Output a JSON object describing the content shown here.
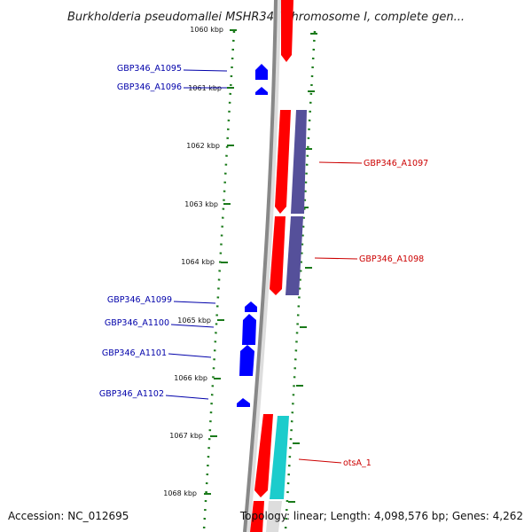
{
  "title": "Burkholderia pseudomallei MSHR346 chromosome I, complete gen...",
  "footer": {
    "accession": "Accession: NC_012695",
    "summary": "Topology: linear; Length: 4,098,576 bp; Genes: 4,262"
  },
  "colors": {
    "forward_gene": "#ff0000",
    "reverse_gene": "#0000ff",
    "orf_purple": "#55509a",
    "orf_cyan": "#1ccccc",
    "forward_label": "#cc0000",
    "reverse_label": "#0000aa",
    "tick_green": "#1a7a1a",
    "backbone": "#888888"
  },
  "scale": {
    "unit": "kbp",
    "ticks": [
      "1060 kbp",
      "1061 kbp",
      "1062 kbp",
      "1063 kbp",
      "1064 kbp",
      "1065 kbp",
      "1066 kbp",
      "1067 kbp",
      "1068 kbp"
    ]
  },
  "genes_reverse": [
    {
      "label": "GBP346_A1095"
    },
    {
      "label": "GBP346_A1096"
    },
    {
      "label": "GBP346_A1099"
    },
    {
      "label": "GBP346_A1100"
    },
    {
      "label": "GBP346_A1101"
    },
    {
      "label": "GBP346_A1102"
    }
  ],
  "genes_forward": [
    {
      "label": "GBP346_A1097"
    },
    {
      "label": "GBP346_A1098"
    },
    {
      "label": "otsA_1"
    }
  ]
}
